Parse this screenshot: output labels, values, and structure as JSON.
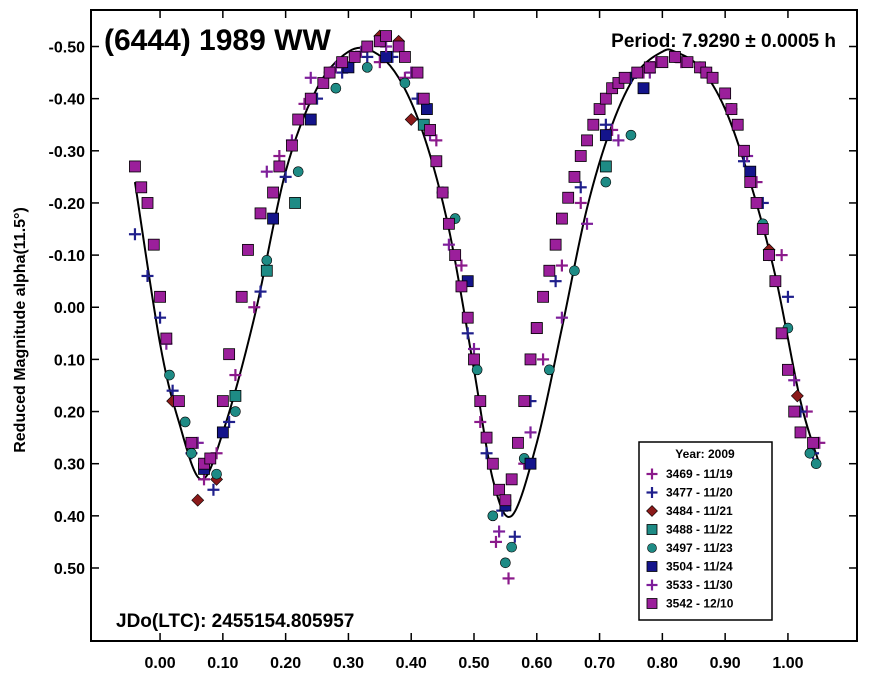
{
  "chart_data": {
    "type": "scatter",
    "title": "(6444) 1989 WW",
    "period_text": "Period: 7.9290 ± 0.0005 h",
    "epoch_text": "JDo(LTC): 2455154.805957",
    "ylabel": "Reduced Magnitude alpha(11.5°)",
    "xlabel": "",
    "xlim": [
      -0.11,
      1.11
    ],
    "ylim": [
      0.64,
      -0.57
    ],
    "y_inverted": true,
    "grid": false,
    "legend_position": "bottom-right",
    "legend_title": "Year: 2009",
    "x_ticks": [
      0.0,
      0.1,
      0.2,
      0.3,
      0.4,
      0.5,
      0.6,
      0.7,
      0.8,
      0.9,
      1.0
    ],
    "x_tick_labels": [
      "0.00",
      "0.10",
      "0.20",
      "0.30",
      "0.40",
      "0.50",
      "0.60",
      "0.70",
      "0.80",
      "0.90",
      "1.00"
    ],
    "y_ticks": [
      -0.5,
      -0.4,
      -0.3,
      -0.2,
      -0.1,
      0.0,
      0.1,
      0.2,
      0.3,
      0.4,
      0.5
    ],
    "y_tick_labels": [
      "-0.50",
      "-0.40",
      "-0.30",
      "-0.20",
      "-0.10",
      "0.00",
      "0.10",
      "0.20",
      "0.30",
      "0.40",
      "0.50"
    ],
    "fit_curve": {
      "color": "#000000",
      "x": [
        -0.04,
        0.0,
        0.03,
        0.065,
        0.1,
        0.15,
        0.2,
        0.25,
        0.3,
        0.34,
        0.38,
        0.42,
        0.46,
        0.5,
        0.53,
        0.56,
        0.6,
        0.64,
        0.68,
        0.72,
        0.76,
        0.8,
        0.82,
        0.86,
        0.9,
        0.94,
        0.98,
        1.02,
        1.05
      ],
      "y": [
        -0.24,
        0.07,
        0.22,
        0.33,
        0.24,
        0.02,
        -0.26,
        -0.42,
        -0.49,
        -0.49,
        -0.44,
        -0.33,
        -0.15,
        0.12,
        0.33,
        0.4,
        0.26,
        0.04,
        -0.19,
        -0.35,
        -0.45,
        -0.49,
        -0.49,
        -0.46,
        -0.38,
        -0.24,
        -0.06,
        0.18,
        0.3
      ]
    },
    "series": [
      {
        "name": "3469 - 11/19",
        "marker": "plus",
        "color": "#8B1A8B",
        "x": [
          0.07,
          0.09,
          0.12,
          0.15,
          0.19,
          0.23,
          0.27,
          0.31,
          0.35,
          0.39,
          0.44,
          0.48,
          0.51,
          0.535,
          0.555,
          0.58,
          0.61,
          0.64,
          0.67,
          0.72,
          0.77,
          0.79,
          0.83,
          0.87,
          0.91,
          0.95,
          0.99,
          1.03,
          1.05
        ],
        "y": [
          0.33,
          0.28,
          0.13,
          0.0,
          -0.29,
          -0.39,
          -0.45,
          -0.48,
          -0.47,
          -0.44,
          -0.32,
          -0.08,
          0.22,
          0.45,
          0.52,
          0.3,
          0.1,
          -0.08,
          -0.2,
          -0.34,
          -0.45,
          -0.47,
          -0.47,
          -0.45,
          -0.38,
          -0.24,
          -0.1,
          0.2,
          0.26
        ]
      },
      {
        "name": "3477 - 11/20",
        "marker": "plus",
        "color": "#1F1F8C",
        "x": [
          -0.04,
          -0.02,
          0.0,
          0.02,
          0.05,
          0.085,
          0.11,
          0.16,
          0.2,
          0.25,
          0.29,
          0.33,
          0.37,
          0.41,
          0.45,
          0.49,
          0.52,
          0.545,
          0.565,
          0.59,
          0.63,
          0.67,
          0.71,
          0.75,
          0.93,
          0.96,
          1.0,
          1.02,
          1.04
        ],
        "y": [
          -0.14,
          -0.06,
          0.02,
          0.16,
          0.28,
          0.35,
          0.22,
          -0.03,
          -0.25,
          -0.4,
          -0.45,
          -0.48,
          -0.48,
          -0.4,
          -0.22,
          0.05,
          0.28,
          0.39,
          0.44,
          0.18,
          -0.05,
          -0.23,
          -0.35,
          -0.44,
          -0.28,
          -0.2,
          -0.02,
          0.2,
          0.28
        ]
      },
      {
        "name": "3484 - 11/21",
        "marker": "diamond",
        "color": "#8B1A1A",
        "x": [
          0.02,
          0.06,
          0.09,
          0.35,
          0.38,
          0.4,
          0.97,
          1.015
        ],
        "y": [
          0.18,
          0.37,
          0.33,
          -0.52,
          -0.51,
          -0.36,
          -0.11,
          0.17
        ]
      },
      {
        "name": "3488 - 11/22",
        "marker": "square",
        "color": "#1E8B85",
        "x": [
          0.12,
          0.17,
          0.215,
          0.42,
          0.6,
          0.71,
          0.97
        ],
        "y": [
          0.17,
          -0.07,
          -0.2,
          -0.35,
          0.04,
          -0.27,
          -0.1
        ]
      },
      {
        "name": "3497 - 11/23",
        "marker": "circle",
        "color": "#1E8B85",
        "x": [
          0.015,
          0.04,
          0.05,
          0.09,
          0.12,
          0.17,
          0.22,
          0.28,
          0.33,
          0.39,
          0.43,
          0.47,
          0.505,
          0.53,
          0.55,
          0.56,
          0.58,
          0.62,
          0.66,
          0.71,
          0.75,
          0.96,
          1.0,
          1.035,
          1.045
        ],
        "y": [
          0.13,
          0.22,
          0.28,
          0.32,
          0.2,
          -0.09,
          -0.26,
          -0.42,
          -0.46,
          -0.43,
          -0.34,
          -0.17,
          0.12,
          0.4,
          0.49,
          0.46,
          0.29,
          0.12,
          -0.07,
          -0.24,
          -0.33,
          -0.16,
          0.04,
          0.28,
          0.3
        ]
      },
      {
        "name": "3504 - 11/24",
        "marker": "square",
        "color": "#14148B",
        "x": [
          0.07,
          0.1,
          0.18,
          0.24,
          0.3,
          0.36,
          0.425,
          0.49,
          0.55,
          0.59,
          0.71,
          0.77,
          0.94
        ],
        "y": [
          0.31,
          0.24,
          -0.17,
          -0.36,
          -0.46,
          -0.48,
          -0.38,
          -0.05,
          0.38,
          0.3,
          -0.33,
          -0.42,
          -0.26
        ]
      },
      {
        "name": "3533 - 11/30",
        "marker": "plus",
        "color": "#7E1F9B",
        "x": [
          0.01,
          0.06,
          0.17,
          0.21,
          0.24,
          0.28,
          0.32,
          0.36,
          0.4,
          0.43,
          0.46,
          0.5,
          0.54,
          0.59,
          0.64,
          0.68,
          0.73,
          0.78,
          0.82,
          0.86,
          0.935,
          0.97,
          1.01
        ],
        "y": [
          0.07,
          0.26,
          -0.26,
          -0.32,
          -0.44,
          -0.46,
          -0.49,
          -0.5,
          -0.45,
          -0.33,
          -0.12,
          0.08,
          0.43,
          0.24,
          0.02,
          -0.16,
          -0.32,
          -0.45,
          -0.48,
          -0.46,
          -0.29,
          -0.1,
          0.14
        ]
      },
      {
        "name": "3542 - 12/10",
        "marker": "square",
        "color": "#9B1F9B",
        "x": [
          -0.04,
          -0.03,
          -0.02,
          -0.01,
          0.0,
          0.01,
          0.03,
          0.05,
          0.07,
          0.08,
          0.1,
          0.11,
          0.13,
          0.14,
          0.16,
          0.18,
          0.19,
          0.21,
          0.22,
          0.24,
          0.26,
          0.27,
          0.29,
          0.31,
          0.33,
          0.35,
          0.36,
          0.38,
          0.39,
          0.41,
          0.42,
          0.43,
          0.44,
          0.45,
          0.46,
          0.47,
          0.48,
          0.49,
          0.5,
          0.51,
          0.52,
          0.53,
          0.54,
          0.55,
          0.56,
          0.57,
          0.58,
          0.59,
          0.6,
          0.61,
          0.62,
          0.63,
          0.64,
          0.65,
          0.66,
          0.67,
          0.68,
          0.69,
          0.7,
          0.71,
          0.72,
          0.73,
          0.74,
          0.76,
          0.78,
          0.8,
          0.82,
          0.84,
          0.86,
          0.87,
          0.88,
          0.9,
          0.91,
          0.92,
          0.93,
          0.94,
          0.95,
          0.96,
          0.97,
          0.98,
          0.99,
          1.0,
          1.01,
          1.02,
          1.04
        ],
        "y": [
          -0.27,
          -0.23,
          -0.2,
          -0.12,
          -0.02,
          0.06,
          0.18,
          0.26,
          0.3,
          0.29,
          0.18,
          0.09,
          -0.02,
          -0.11,
          -0.18,
          -0.22,
          -0.27,
          -0.31,
          -0.36,
          -0.4,
          -0.43,
          -0.45,
          -0.47,
          -0.48,
          -0.5,
          -0.51,
          -0.52,
          -0.5,
          -0.48,
          -0.45,
          -0.4,
          -0.34,
          -0.28,
          -0.22,
          -0.16,
          -0.1,
          -0.04,
          0.02,
          0.1,
          0.18,
          0.25,
          0.3,
          0.35,
          0.37,
          0.33,
          0.26,
          0.18,
          0.1,
          0.04,
          -0.02,
          -0.07,
          -0.12,
          -0.17,
          -0.21,
          -0.25,
          -0.29,
          -0.32,
          -0.35,
          -0.38,
          -0.4,
          -0.42,
          -0.43,
          -0.44,
          -0.45,
          -0.46,
          -0.47,
          -0.48,
          -0.47,
          -0.46,
          -0.45,
          -0.44,
          -0.41,
          -0.38,
          -0.35,
          -0.3,
          -0.24,
          -0.2,
          -0.15,
          -0.1,
          -0.05,
          0.05,
          0.12,
          0.2,
          0.24,
          0.26
        ]
      }
    ]
  }
}
